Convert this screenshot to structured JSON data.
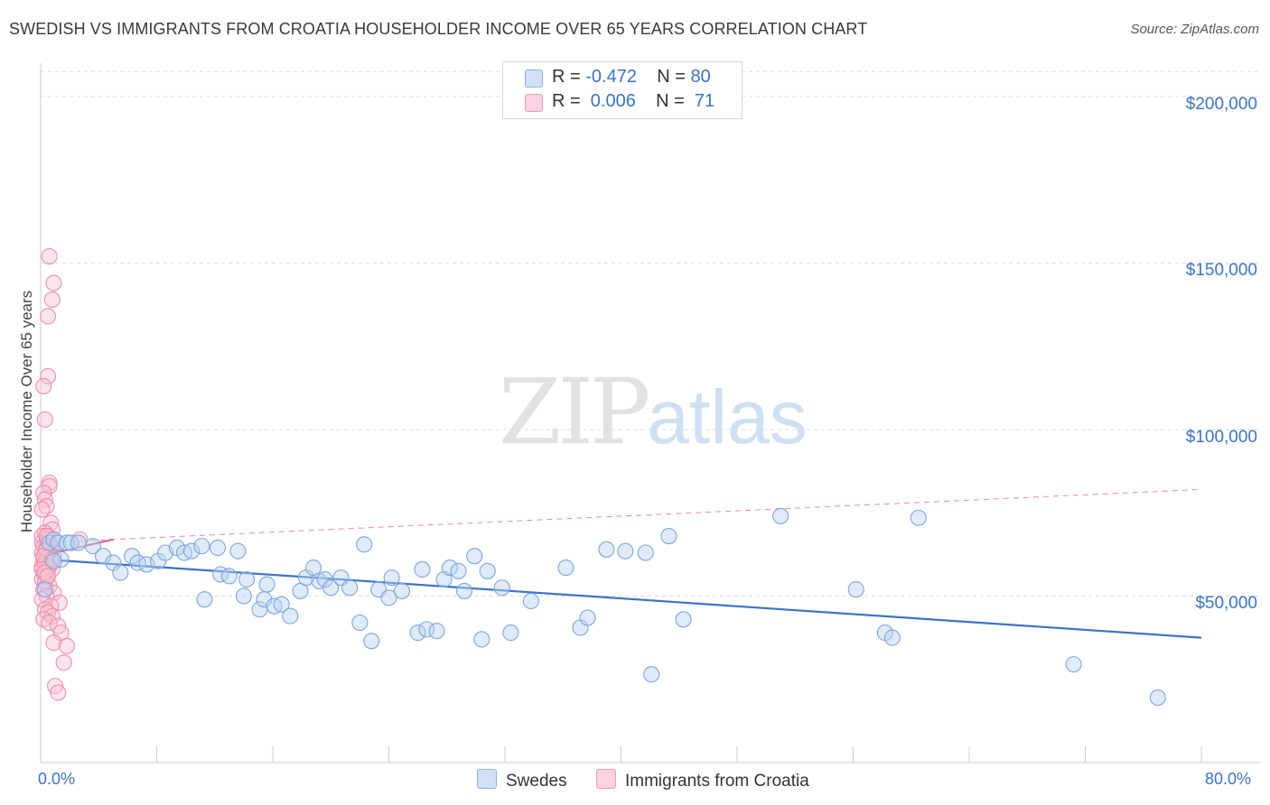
{
  "title": "SWEDISH VS IMMIGRANTS FROM CROATIA HOUSEHOLDER INCOME OVER 65 YEARS CORRELATION CHART",
  "source": "Source: ZipAtlas.com",
  "watermark": {
    "zip": "ZIP",
    "atlas": "atlas"
  },
  "legend": {
    "rows": [
      {
        "r_label": "R = ",
        "r_value": "-0.472",
        "n_label": "N = ",
        "n_value": "80",
        "color": "#a9c7ee"
      },
      {
        "r_label": "R = ",
        "r_value": " 0.006",
        "n_label": "N = ",
        "n_value": " 71",
        "color": "#f5b5c8"
      }
    ]
  },
  "bottom_legend": [
    {
      "label": "Swedes",
      "color": "#a9c7ee"
    },
    {
      "label": "Immigrants from Croatia",
      "color": "#f5b5c8"
    }
  ],
  "colors": {
    "blue": "#3a74c9",
    "blue_fill": "#a9c7ee",
    "pink": "#e8557f",
    "pink_fill": "#f5b5c8",
    "grid": "#dcdcdc"
  },
  "chart_data": {
    "type": "scatter",
    "title": "SWEDISH VS IMMIGRANTS FROM CROATIA HOUSEHOLDER INCOME OVER 65 YEARS CORRELATION CHART",
    "xlabel": "",
    "ylabel": "Householder Income Over 65 years",
    "xlim": [
      0,
      80
    ],
    "ylim": [
      0,
      210000
    ],
    "x_tick_labels": [
      "0.0%",
      "80.0%"
    ],
    "y_ticks": [
      50000,
      100000,
      150000,
      200000
    ],
    "y_tick_labels": [
      "$50,000",
      "$100,000",
      "$150,000",
      "$200,000"
    ],
    "series": [
      {
        "name": "Swedes",
        "r": -0.472,
        "n": 80,
        "trend": {
          "x": [
            0.3,
            80
          ],
          "y": [
            61000,
            37500
          ],
          "style": "solid"
        },
        "points": [
          [
            0.3,
            52000
          ],
          [
            0.6,
            66000
          ],
          [
            0.9,
            67000
          ],
          [
            1.2,
            66000
          ],
          [
            1.4,
            61000
          ],
          [
            1.8,
            66000
          ],
          [
            2.1,
            66000
          ],
          [
            2.6,
            66000
          ],
          [
            3.6,
            65000
          ],
          [
            4.3,
            62000
          ],
          [
            5.0,
            60000
          ],
          [
            5.5,
            57000
          ],
          [
            6.3,
            62000
          ],
          [
            6.7,
            60000
          ],
          [
            7.3,
            59500
          ],
          [
            8.1,
            60500
          ],
          [
            8.6,
            63000
          ],
          [
            9.4,
            64500
          ],
          [
            9.9,
            63000
          ],
          [
            10.4,
            63500
          ],
          [
            11.1,
            65000
          ],
          [
            11.3,
            49000
          ],
          [
            12.2,
            64500
          ],
          [
            12.4,
            56500
          ],
          [
            13.0,
            56000
          ],
          [
            13.6,
            63500
          ],
          [
            14.0,
            50000
          ],
          [
            14.2,
            55000
          ],
          [
            15.1,
            46000
          ],
          [
            15.4,
            49000
          ],
          [
            15.6,
            53500
          ],
          [
            16.1,
            47000
          ],
          [
            16.6,
            47500
          ],
          [
            17.2,
            44000
          ],
          [
            17.9,
            51500
          ],
          [
            18.3,
            55500
          ],
          [
            18.8,
            58500
          ],
          [
            19.2,
            54500
          ],
          [
            19.6,
            55000
          ],
          [
            20.0,
            52500
          ],
          [
            20.7,
            55500
          ],
          [
            21.3,
            52500
          ],
          [
            22.0,
            42000
          ],
          [
            22.3,
            65500
          ],
          [
            22.8,
            36500
          ],
          [
            23.3,
            52000
          ],
          [
            24.0,
            49500
          ],
          [
            24.2,
            55500
          ],
          [
            24.9,
            51500
          ],
          [
            26.0,
            39000
          ],
          [
            26.3,
            58000
          ],
          [
            26.6,
            40000
          ],
          [
            27.3,
            39500
          ],
          [
            27.8,
            55000
          ],
          [
            28.2,
            58500
          ],
          [
            28.8,
            57500
          ],
          [
            29.2,
            51500
          ],
          [
            29.9,
            62000
          ],
          [
            30.4,
            37000
          ],
          [
            30.8,
            57500
          ],
          [
            31.8,
            52500
          ],
          [
            32.4,
            39000
          ],
          [
            33.8,
            48500
          ],
          [
            36.2,
            58500
          ],
          [
            37.2,
            40500
          ],
          [
            37.7,
            43500
          ],
          [
            39.0,
            64000
          ],
          [
            40.3,
            63500
          ],
          [
            41.7,
            63000
          ],
          [
            42.1,
            26500
          ],
          [
            43.3,
            68000
          ],
          [
            44.3,
            43000
          ],
          [
            51.0,
            74000
          ],
          [
            56.2,
            52000
          ],
          [
            58.2,
            39000
          ],
          [
            58.7,
            37500
          ],
          [
            60.5,
            73500
          ],
          [
            71.2,
            29500
          ],
          [
            77.0,
            19500
          ],
          [
            0.9,
            60500
          ]
        ]
      },
      {
        "name": "Immigrants from Croatia",
        "r": 0.006,
        "n": 71,
        "trend": {
          "x": [
            0,
            80
          ],
          "y": [
            66000,
            82000
          ],
          "style": "dashed"
        },
        "trend_solid": {
          "x": [
            0,
            5.0
          ],
          "y": [
            62000,
            67000
          ]
        },
        "points": [
          [
            0.6,
            152000
          ],
          [
            0.9,
            144000
          ],
          [
            0.8,
            139000
          ],
          [
            0.5,
            134000
          ],
          [
            0.5,
            116000
          ],
          [
            0.2,
            113000
          ],
          [
            0.3,
            103000
          ],
          [
            0.6,
            84000
          ],
          [
            0.6,
            83000
          ],
          [
            0.2,
            81000
          ],
          [
            0.3,
            79000
          ],
          [
            0.4,
            77000
          ],
          [
            0.1,
            76000
          ],
          [
            0.7,
            72000
          ],
          [
            0.8,
            70000
          ],
          [
            0.3,
            69000
          ],
          [
            0.1,
            68000
          ],
          [
            0.5,
            68000
          ],
          [
            0.9,
            67000
          ],
          [
            2.7,
            67000
          ],
          [
            0.1,
            66000
          ],
          [
            0.4,
            66000
          ],
          [
            0.6,
            66000
          ],
          [
            0.2,
            65000
          ],
          [
            0.5,
            65000
          ],
          [
            0.8,
            64000
          ],
          [
            0.1,
            63000
          ],
          [
            0.3,
            63000
          ],
          [
            0.6,
            62000
          ],
          [
            0.9,
            62000
          ],
          [
            0.2,
            61000
          ],
          [
            0.4,
            61000
          ],
          [
            0.7,
            60000
          ],
          [
            0.1,
            59000
          ],
          [
            0.3,
            59000
          ],
          [
            0.5,
            58000
          ],
          [
            0.8,
            58000
          ],
          [
            0.2,
            57000
          ],
          [
            0.4,
            56000
          ],
          [
            0.1,
            55000
          ],
          [
            0.3,
            54000
          ],
          [
            0.6,
            53000
          ],
          [
            0.2,
            52000
          ],
          [
            0.9,
            51000
          ],
          [
            0.4,
            50000
          ],
          [
            0.1,
            49000
          ],
          [
            1.3,
            48000
          ],
          [
            0.7,
            47000
          ],
          [
            0.3,
            46000
          ],
          [
            0.5,
            45000
          ],
          [
            0.8,
            44000
          ],
          [
            0.2,
            43000
          ],
          [
            0.6,
            42000
          ],
          [
            1.2,
            41000
          ],
          [
            1.4,
            39000
          ],
          [
            0.9,
            36000
          ],
          [
            1.8,
            35000
          ],
          [
            1.6,
            30000
          ],
          [
            1.0,
            23000
          ],
          [
            1.2,
            21000
          ],
          [
            0.3,
            60000
          ],
          [
            0.5,
            67000
          ],
          [
            0.7,
            65000
          ],
          [
            0.4,
            64000
          ],
          [
            0.2,
            62000
          ],
          [
            0.6,
            59000
          ],
          [
            0.1,
            58000
          ],
          [
            0.3,
            57000
          ],
          [
            0.5,
            56000
          ],
          [
            0.8,
            61000
          ],
          [
            0.4,
            68000
          ]
        ]
      }
    ]
  }
}
